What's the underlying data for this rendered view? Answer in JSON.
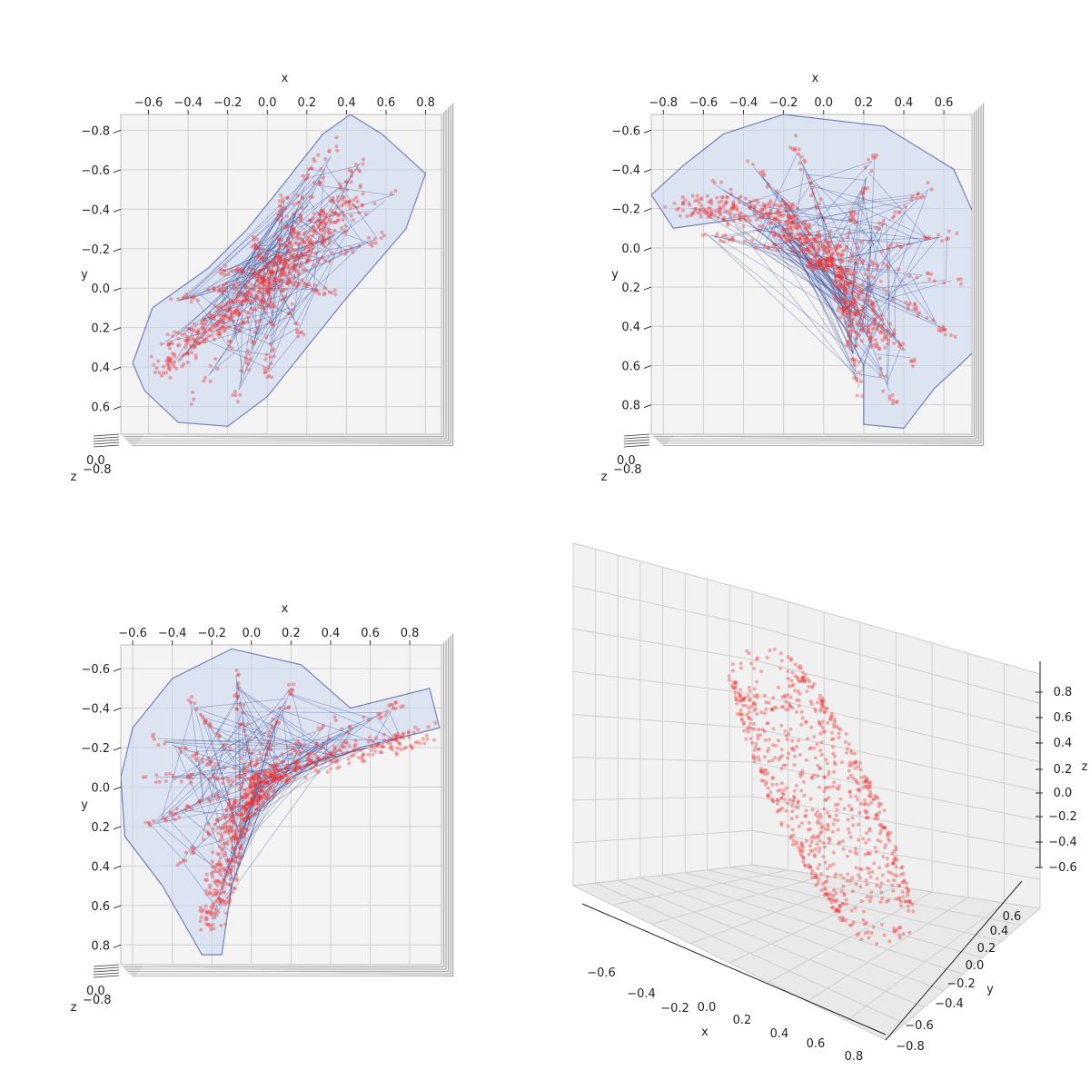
{
  "chart_data": [
    {
      "type": "scatter",
      "view": "top",
      "xlabel": "x",
      "ylabel": "y",
      "zlabel": "z",
      "xticks": [
        "−0.6",
        "−0.4",
        "−0.2",
        "0.0",
        "0.2",
        "0.4",
        "0.6",
        "0.8"
      ],
      "xtick_values": [
        -0.6,
        -0.4,
        -0.2,
        0.0,
        0.2,
        0.4,
        0.6,
        0.8
      ],
      "xlim": [
        -0.74,
        0.88
      ],
      "yticks": [
        "−0.8",
        "−0.6",
        "−0.4",
        "−0.2",
        "0.0",
        "0.2",
        "0.4",
        "0.6"
      ],
      "ytick_values": [
        -0.8,
        -0.6,
        -0.4,
        -0.2,
        0.0,
        0.2,
        0.4,
        0.6
      ],
      "ylim": [
        -0.88,
        0.74
      ],
      "y_inverted": true,
      "hull_outline": [
        [
          0.42,
          -0.88
        ],
        [
          0.58,
          -0.78
        ],
        [
          0.8,
          -0.58
        ],
        [
          0.7,
          -0.3
        ],
        [
          0.4,
          0.05
        ],
        [
          0.2,
          0.3
        ],
        [
          0.0,
          0.55
        ],
        [
          -0.2,
          0.7
        ],
        [
          -0.45,
          0.68
        ],
        [
          -0.62,
          0.52
        ],
        [
          -0.68,
          0.38
        ],
        [
          -0.58,
          0.1
        ],
        [
          -0.3,
          -0.1
        ],
        [
          -0.1,
          -0.3
        ],
        [
          0.1,
          -0.55
        ],
        [
          0.28,
          -0.78
        ]
      ],
      "points_spine": [
        [
          -0.55,
          0.4
        ],
        [
          0.0,
          0.0
        ],
        [
          0.45,
          -0.5
        ]
      ],
      "point_color": "#ee3333",
      "hull_color": "#2c3e8c",
      "fill_color": "#c8d6ee"
    },
    {
      "type": "scatter",
      "view": "top",
      "xlabel": "x",
      "ylabel": "y",
      "zlabel": "z",
      "xticks": [
        "−0.8",
        "−0.6",
        "−0.4",
        "−0.2",
        "0.0",
        "0.2",
        "0.4",
        "0.6"
      ],
      "xtick_values": [
        -0.8,
        -0.6,
        -0.4,
        -0.2,
        0.0,
        0.2,
        0.4,
        0.6
      ],
      "xlim": [
        -0.86,
        0.74
      ],
      "yticks": [
        "−0.6",
        "−0.4",
        "−0.2",
        "0.0",
        "0.2",
        "0.4",
        "0.6",
        "0.8"
      ],
      "ytick_values": [
        -0.6,
        -0.4,
        -0.2,
        0.0,
        0.2,
        0.4,
        0.6,
        0.8
      ],
      "ylim": [
        -0.68,
        0.95
      ],
      "y_inverted": true,
      "hull_outline": [
        [
          -0.86,
          -0.27
        ],
        [
          -0.7,
          -0.42
        ],
        [
          -0.5,
          -0.58
        ],
        [
          -0.2,
          -0.68
        ],
        [
          0.3,
          -0.62
        ],
        [
          0.65,
          -0.4
        ],
        [
          0.78,
          -0.1
        ],
        [
          0.82,
          0.2
        ],
        [
          0.76,
          0.52
        ],
        [
          0.55,
          0.72
        ],
        [
          0.4,
          0.92
        ],
        [
          0.2,
          0.9
        ],
        [
          0.2,
          0.6
        ],
        [
          0.1,
          0.4
        ],
        [
          -0.1,
          0.1
        ],
        [
          -0.4,
          -0.15
        ],
        [
          -0.75,
          -0.1
        ]
      ],
      "points_spine": [
        [
          -0.75,
          -0.22
        ],
        [
          -0.2,
          -0.18
        ],
        [
          0.05,
          0.1
        ],
        [
          0.3,
          0.5
        ]
      ],
      "point_color": "#ee3333",
      "hull_color": "#2c3e8c",
      "fill_color": "#c8d6ee"
    },
    {
      "type": "scatter",
      "view": "top",
      "xlabel": "x",
      "ylabel": "y",
      "zlabel": "z",
      "xticks": [
        "−0.6",
        "−0.4",
        "−0.2",
        "0.0",
        "0.2",
        "0.4",
        "0.6",
        "0.8"
      ],
      "xtick_values": [
        -0.6,
        -0.4,
        -0.2,
        0.0,
        0.2,
        0.4,
        0.6,
        0.8
      ],
      "xlim": [
        -0.66,
        0.96
      ],
      "yticks": [
        "−0.6",
        "−0.4",
        "−0.2",
        "0.0",
        "0.2",
        "0.4",
        "0.6",
        "0.8"
      ],
      "ytick_values": [
        -0.6,
        -0.4,
        -0.2,
        0.0,
        0.2,
        0.4,
        0.6,
        0.8
      ],
      "ylim": [
        -0.72,
        0.9
      ],
      "y_inverted": true,
      "hull_outline": [
        [
          -0.6,
          -0.3
        ],
        [
          -0.4,
          -0.55
        ],
        [
          -0.1,
          -0.7
        ],
        [
          0.25,
          -0.62
        ],
        [
          0.5,
          -0.4
        ],
        [
          0.9,
          -0.5
        ],
        [
          0.95,
          -0.3
        ],
        [
          0.55,
          -0.2
        ],
        [
          0.2,
          -0.05
        ],
        [
          0.05,
          0.1
        ],
        [
          -0.1,
          0.5
        ],
        [
          -0.15,
          0.85
        ],
        [
          -0.25,
          0.85
        ],
        [
          -0.45,
          0.5
        ],
        [
          -0.64,
          0.25
        ],
        [
          -0.66,
          -0.05
        ]
      ],
      "points_spine": [
        [
          -0.22,
          0.7
        ],
        [
          -0.1,
          0.2
        ],
        [
          0.1,
          -0.05
        ],
        [
          0.88,
          -0.28
        ]
      ],
      "point_color": "#ee3333",
      "hull_color": "#2c3e8c",
      "fill_color": "#c8d6ee"
    },
    {
      "type": "scatter",
      "view": "perspective",
      "xlabel": "x",
      "ylabel": "y",
      "zlabel": "z",
      "xticks": [
        "−0.6",
        "−0.4",
        "−0.2",
        "0.0",
        "0.2",
        "0.4",
        "0.6",
        "0.8"
      ],
      "yticks": [
        "−0.8",
        "−0.6",
        "−0.4",
        "−0.2",
        "0.0",
        "0.2",
        "0.4",
        "0.6"
      ],
      "zticks": [
        "−0.6",
        "−0.4",
        "−0.2",
        "0.0",
        "0.2",
        "0.4",
        "0.6",
        "0.8"
      ],
      "point_color": "#ee3333"
    }
  ]
}
